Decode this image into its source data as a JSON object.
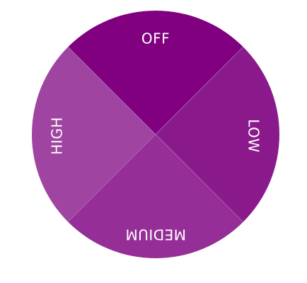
{
  "dial": {
    "segments": [
      {
        "id": "off",
        "label": "OFF",
        "color": "#800080"
      },
      {
        "id": "low",
        "label": "LOW",
        "color": "#8a1a8c"
      },
      {
        "id": "medium",
        "label": "MEDIUM",
        "color": "#952e96"
      },
      {
        "id": "high",
        "label": "HIGH",
        "color": "#9f45a1"
      }
    ],
    "divider_color": "#b06ab2"
  }
}
